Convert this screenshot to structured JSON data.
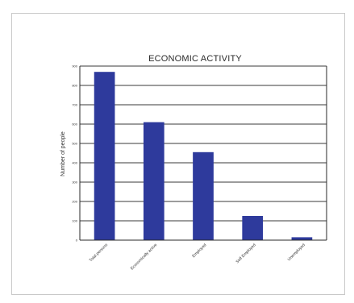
{
  "chart_data": {
    "type": "bar",
    "title": "ECONOMIC ACTIVITY",
    "xlabel": "",
    "ylabel": "Number of people",
    "categories": [
      "Total persons",
      "Economically active",
      "Employed",
      "Self Employed",
      "Unemployed"
    ],
    "values": [
      870,
      610,
      455,
      125,
      15
    ],
    "ylim": [
      0,
      900
    ],
    "yticks": [
      0,
      100,
      200,
      300,
      400,
      500,
      600,
      700,
      800,
      900
    ],
    "grid": true,
    "legend": "none",
    "bar_color": "#2e3a9c"
  }
}
